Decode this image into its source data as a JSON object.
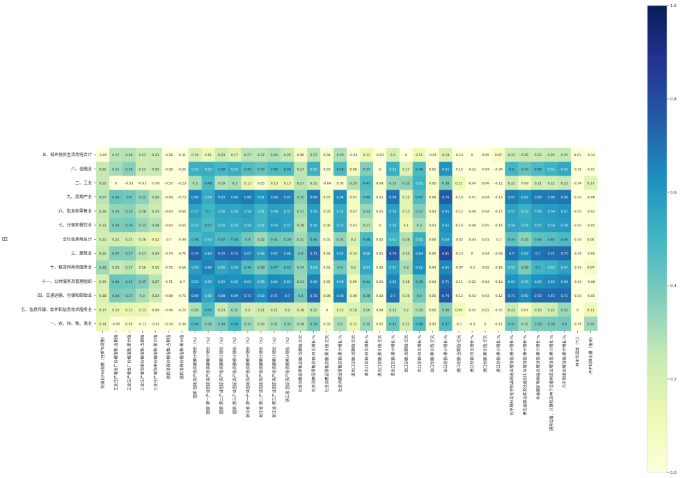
{
  "chart_data": {
    "type": "heatmap",
    "title": "",
    "ylabel": "日",
    "xlabel": "",
    "colormap": "YlGnBu",
    "colors": [
      "#ffffd9",
      "#edf8b1",
      "#c7e9b4",
      "#7fcdbb",
      "#41b6c4",
      "#1d91c0",
      "#225ea8",
      "#253494",
      "#081d58"
    ],
    "vmin": 0,
    "vmax": 1,
    "colorbar_ticks": [
      "0.0",
      "0.2",
      "0.4",
      "0.6",
      "0.8",
      "1.0"
    ],
    "rows": [
      "B、城乡居民生活用电合计",
      "八、金融业",
      "二、工业",
      "九、房地产业",
      "六、批发和零售业",
      "七、住宿和餐饮业",
      "全社会用电总计",
      "三、建筑业",
      "十、租赁和商务服务业",
      "十一、公共服务及管理组织",
      "四、交通运输、仓储和邮政业",
      "五、信息传输、软件和信息技术服务业",
      "一、农、林、牧、渔业"
    ],
    "columns": [
      "制造业PMI指数（经季节调整）",
      "工业生产者出厂价格指数:当期值",
      "工业生产者出厂价格指数:累计值",
      "工业生产者购进价格指数:当期值",
      "工业生产者购进价格指数:累计值",
      "居民消费价格指数:当期值",
      "居民消费价格指数:累计值",
      "国家:固定资产投资额累计增长（%）",
      "国家:第一产业固定资产投资额累计增长（%）",
      "国家:第二产业固定资产投资额累计增长（%）",
      "国家:第三产业固定资产投资额累计增长（%）",
      "浙江省:第一产业固定资产投资额累计增长（%）",
      "浙江省:第二产业固定资产投资额累计增长（%）",
      "浙江省:第三产业固定资产投资额累计增长（%）",
      "浙江省:固定资产投资额累计增长（%）",
      "社会消费品零售总额:当期值:亿元",
      "社会消费品零售总额:同比增长:%",
      "社会消费品零售总额:累计值:亿元",
      "社会消费品零售总额:累计增长:%",
      "进出口总额:当期值:亿元",
      "进出口总额:同比增长:%",
      "进出口总额:累计值:亿元",
      "进出口总额:累计增长:%",
      "出口总额:当期值:亿元",
      "出口总额:同比增长:%",
      "出口总额:累计值:亿元",
      "出口总额:累计增长:%",
      "进口总额:当期值:亿元",
      "进口总额:同比增长:%",
      "进口总额:累计值:亿元",
      "进口总额:累计增长:%",
      "化学原料及化学制品制造业增加值:累计增长:%",
      "黑色金属冶炼及压延加工业增加值:累计增长:%",
      "非金属矿物制品业增加值:累计增长:%",
      "通用设备、计算机及电子设备制造业增加值:累计增长:%",
      "汽车制造业增加值:累计增长:%",
      "月平均温度（℃）",
      "月平均降水量（毫米）"
    ],
    "values": [
      [
        -0.09,
        0.27,
        0.28,
        0.23,
        0.23,
        -0.28,
        -0.31,
        0.19,
        0.11,
        0.23,
        0.17,
        0.27,
        0.27,
        0.29,
        0.25,
        0.06,
        0.27,
        0.04,
        0.29,
        -0.04,
        0.11,
        -0.03,
        0.2,
        0,
        0.11,
        -0.01,
        0.18,
        -0.13,
        0,
        -0.05,
        0.07,
        0.23,
        0.25,
        0.23,
        0.25,
        0.25,
        0.01,
        -0.14
      ],
      [
        0.25,
        0.31,
        0.36,
        0.23,
        0.25,
        -0.58,
        -0.55,
        0.52,
        0.53,
        0.49,
        0.53,
        0.46,
        0.43,
        0.48,
        0.48,
        0.27,
        0.52,
        0.03,
        0.48,
        0.08,
        0.37,
        0,
        0.53,
        0.17,
        0.48,
        0.02,
        0.62,
        -0.15,
        -0.22,
        -0.04,
        -0.34,
        0.5,
        0.43,
        0.48,
        0.51,
        0.55,
        -0.02,
        -0.01
      ],
      [
        0.25,
        0,
        -0.03,
        -0.03,
        -0.08,
        -0.57,
        -0.23,
        0.3,
        0.48,
        0.28,
        0.3,
        0.13,
        0.05,
        0.13,
        0.13,
        0.27,
        0.22,
        -0.04,
        0.05,
        0.29,
        0.47,
        0.04,
        0.33,
        0.35,
        0.51,
        0.05,
        0.38,
        0.11,
        -0.04,
        0.04,
        -0.12,
        0.22,
        0.09,
        0.21,
        0.22,
        0.25,
        -0.04,
        0.17
      ],
      [
        0.27,
        0.42,
        0.4,
        0.35,
        0.26,
        -0.64,
        -0.73,
        0.66,
        0.54,
        0.65,
        0.66,
        0.68,
        0.61,
        0.68,
        0.67,
        0.35,
        0.68,
        0.07,
        0.64,
        0.07,
        0.44,
        0.01,
        0.69,
        0.15,
        0.47,
        0.04,
        0.76,
        -0.14,
        -0.01,
        -0.04,
        -0.13,
        0.67,
        0.62,
        0.68,
        0.68,
        0.69,
        -0.01,
        -0.08
      ],
      [
        0.24,
        0.34,
        0.35,
        0.28,
        0.23,
        -0.64,
        -0.64,
        0.57,
        0.5,
        0.56,
        0.56,
        0.58,
        0.51,
        0.58,
        0.57,
        0.31,
        0.59,
        0.05,
        0.54,
        0.07,
        0.33,
        0.01,
        0.58,
        0.15,
        0.37,
        0.04,
        0.65,
        -0.12,
        -0.06,
        -0.04,
        -0.17,
        0.57,
        0.52,
        0.58,
        0.59,
        0.61,
        -0.01,
        -0.02
      ],
      [
        0.23,
        0.38,
        0.39,
        0.33,
        0.28,
        -0.64,
        -0.65,
        0.53,
        0.47,
        0.55,
        0.54,
        0.56,
        0.51,
        0.59,
        0.57,
        0.28,
        0.59,
        0.06,
        0.55,
        0.03,
        0.27,
        0,
        0.56,
        0.1,
        0.3,
        0.03,
        0.62,
        -0.14,
        -0.06,
        -0.05,
        -0.14,
        0.56,
        0.54,
        0.57,
        0.58,
        0.59,
        -0.01,
        -0.05
      ],
      [
        0.21,
        0.22,
        0.21,
        0.16,
        0.12,
        -0.7,
        -0.49,
        0.48,
        0.53,
        0.47,
        0.48,
        0.4,
        0.32,
        0.41,
        0.39,
        0.31,
        0.46,
        0.01,
        0.34,
        0.2,
        0.48,
        0.02,
        0.51,
        0.28,
        0.52,
        0.04,
        0.59,
        -0.02,
        -0.04,
        -0.01,
        -0.1,
        0.44,
        0.35,
        0.44,
        0.45,
        0.48,
        -0.03,
        0.05
      ],
      [
        0.25,
        0.37,
        0.37,
        0.27,
        0.24,
        -0.74,
        -0.75,
        0.74,
        0.64,
        0.72,
        0.73,
        0.67,
        0.58,
        0.67,
        0.66,
        0.4,
        0.71,
        0.05,
        0.62,
        0.14,
        0.58,
        0.01,
        0.76,
        0.25,
        0.64,
        0.04,
        0.81,
        -0.13,
        0,
        -0.04,
        -0.06,
        0.7,
        0.62,
        0.7,
        0.71,
        0.72,
        -0.02,
        -0.05
      ],
      [
        0.32,
        0.25,
        0.27,
        0.16,
        0.15,
        -0.75,
        -0.56,
        0.59,
        0.66,
        0.55,
        0.59,
        0.46,
        0.38,
        0.47,
        0.45,
        0.34,
        0.53,
        0.01,
        0.4,
        0.2,
        0.54,
        0.02,
        0.57,
        0.3,
        0.62,
        0.04,
        0.65,
        -0.07,
        -0.1,
        -0.02,
        -0.18,
        0.52,
        0.38,
        0.5,
        0.52,
        0.57,
        -0.03,
        0.07
      ],
      [
        0.19,
        0.42,
        0.41,
        0.37,
        0.27,
        -0.71,
        -0.7,
        0.63,
        0.59,
        0.63,
        0.62,
        0.63,
        0.56,
        0.64,
        0.62,
        0.33,
        0.66,
        0.05,
        0.58,
        0.09,
        0.44,
        0.01,
        0.65,
        0.18,
        0.45,
        0.04,
        0.71,
        -0.11,
        0.02,
        -0.04,
        -0.14,
        0.62,
        0.56,
        0.62,
        0.64,
        0.66,
        -0.01,
        -0.08
      ],
      [
        0.18,
        0.38,
        0.37,
        0.3,
        0.23,
        -0.68,
        -0.75,
        0.69,
        0.56,
        0.68,
        0.69,
        0.71,
        0.63,
        0.71,
        0.7,
        0.4,
        0.72,
        0.08,
        0.66,
        0.08,
        0.38,
        0.02,
        0.7,
        0.16,
        0.4,
        0.05,
        0.76,
        -0.12,
        -0.02,
        -0.03,
        -0.12,
        0.71,
        0.65,
        0.72,
        0.72,
        0.72,
        -0.01,
        -0.05
      ],
      [
        0.17,
        0.15,
        0.13,
        0.13,
        0.04,
        -0.46,
        -0.25,
        0.29,
        0.47,
        0.23,
        0.32,
        0.2,
        0.21,
        0.21,
        0.2,
        0.18,
        0.25,
        0,
        0.15,
        0.18,
        0.26,
        0.04,
        0.25,
        0.2,
        0.29,
        0.05,
        0.36,
        0.09,
        -0.02,
        0.03,
        -0.35,
        0.23,
        0.07,
        0.19,
        0.22,
        0.33,
        0,
        0.11
      ],
      [
        0.14,
        -0.05,
        0.05,
        -0.13,
        -0.01,
        -0.34,
        -0.34,
        0.46,
        0.36,
        0.39,
        0.49,
        0.32,
        0.26,
        0.31,
        0.34,
        0.28,
        0.39,
        0.03,
        0.3,
        0.12,
        0.32,
        0.02,
        0.42,
        0.21,
        0.46,
        0.03,
        0.47,
        -0.1,
        -0.3,
        0,
        -0.11,
        0.41,
        0.31,
        0.39,
        0.39,
        0.4,
        -0.05,
        0.32
      ]
    ]
  }
}
